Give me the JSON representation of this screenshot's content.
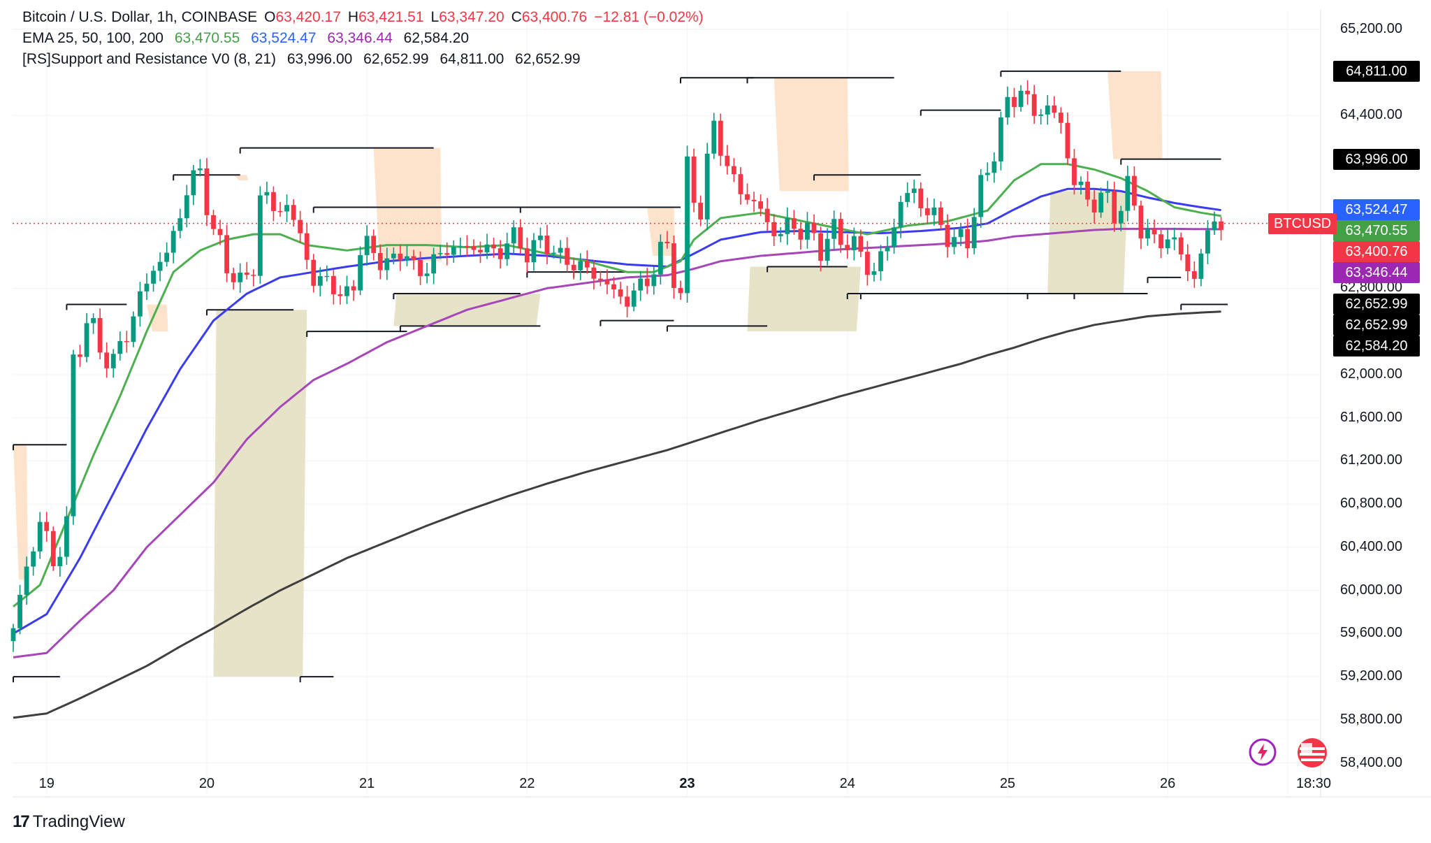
{
  "header": {
    "symbol_title": "Bitcoin / U.S. Dollar, 1h, COINBASE",
    "ohlc": [
      {
        "key": "O",
        "value": "63,420.17"
      },
      {
        "key": "H",
        "value": "63,421.51"
      },
      {
        "key": "L",
        "value": "63,347.20"
      },
      {
        "key": "C",
        "value": "63,400.76"
      }
    ],
    "change": "−12.81 (−0.02%)"
  },
  "indicators": {
    "ema_label": "EMA 25, 50, 100, 200",
    "ema_values": [
      "63,470.55",
      "63,524.47",
      "63,346.44",
      "62,584.20"
    ],
    "sr_label": "[RS]Support and Resistance V0 (8, 21)",
    "sr_values": [
      "63,996.00",
      "62,652.99",
      "64,811.00",
      "62,652.99"
    ]
  },
  "colors": {
    "up": "#089981",
    "down": "#f23645",
    "ema25": "#4caf50",
    "ema50": "#3b3bf0",
    "ema100": "#a646b8",
    "ema200": "#3f3f3f",
    "resistance_fill": "#fde3cc",
    "support_fill": "#e6e3c8",
    "level_line": "#131722"
  },
  "price_tags": [
    {
      "label": "64,811.00",
      "price": 64811,
      "bg": "#000000"
    },
    {
      "label": "63,996.00",
      "price": 63996,
      "bg": "#000000"
    },
    {
      "label": "63,524.47",
      "price": 63524.47,
      "bg": "#2962ff"
    },
    {
      "label": "63,470.55",
      "price": 63470.55,
      "bg": "#43a047"
    },
    {
      "label": "63,400.76",
      "price": 63400.76,
      "bg": "#f23645"
    },
    {
      "label": "63,346.44",
      "price": 63346.44,
      "bg": "#9c27b0"
    },
    {
      "label": "62,652.99",
      "price": 62652.99,
      "bg": "#000000"
    },
    {
      "label": "62,652.99",
      "price": 62652.99,
      "bg": "#000000"
    },
    {
      "label": "62,584.20",
      "price": 62584.2,
      "bg": "#000000"
    }
  ],
  "symbol_tag": "BTCUSD",
  "footer": {
    "brand": "TradingView",
    "brand_mark": "17"
  },
  "icons": {
    "left": "lightning-icon",
    "right": "us-flag-icon"
  },
  "chart_data": {
    "type": "candlestick",
    "title": "Bitcoin / U.S. Dollar, 1h, COINBASE",
    "ylim": [
      58100,
      65380
    ],
    "y_ticks": [
      58400,
      58800,
      59200,
      59600,
      60000,
      60400,
      60800,
      61200,
      61600,
      62000,
      62800,
      64400,
      65200
    ],
    "y_tick_labels": [
      "58,400.00",
      "58,800.00",
      "59,200.00",
      "59,600.00",
      "60,000.00",
      "60,400.00",
      "60,800.00",
      "61,200.00",
      "61,600.00",
      "62,000.00",
      "62,800.00",
      "64,400.00",
      "65,200.00"
    ],
    "x_ticks": [
      {
        "label": "19",
        "bar": 5,
        "bold": false
      },
      {
        "label": "20",
        "bar": 29,
        "bold": false
      },
      {
        "label": "21",
        "bar": 53,
        "bold": false
      },
      {
        "label": "22",
        "bar": 77,
        "bold": false
      },
      {
        "label": "23",
        "bar": 101,
        "bold": true
      },
      {
        "label": "24",
        "bar": 125,
        "bold": false
      },
      {
        "label": "25",
        "bar": 149,
        "bold": false
      },
      {
        "label": "26",
        "bar": 173,
        "bold": false
      },
      {
        "label": "18:30",
        "bar": 191,
        "bold": false
      }
    ],
    "close_anchors": [
      [
        0,
        59650
      ],
      [
        2,
        60200
      ],
      [
        4,
        60650
      ],
      [
        6,
        60250
      ],
      [
        8,
        60600
      ],
      [
        9,
        62100
      ],
      [
        11,
        62500
      ],
      [
        13,
        62250
      ],
      [
        15,
        62100
      ],
      [
        17,
        62400
      ],
      [
        19,
        62700
      ],
      [
        21,
        63000
      ],
      [
        23,
        63100
      ],
      [
        24,
        63300
      ],
      [
        26,
        63700
      ],
      [
        28,
        63900
      ],
      [
        30,
        63300
      ],
      [
        32,
        63050
      ],
      [
        34,
        62800
      ],
      [
        36,
        63050
      ],
      [
        37,
        63600
      ],
      [
        39,
        63600
      ],
      [
        41,
        63500
      ],
      [
        43,
        63350
      ],
      [
        45,
        62800
      ],
      [
        47,
        62950
      ],
      [
        49,
        62650
      ],
      [
        51,
        62900
      ],
      [
        52,
        63100
      ],
      [
        54,
        63200
      ],
      [
        56,
        62950
      ],
      [
        58,
        63200
      ],
      [
        60,
        62950
      ],
      [
        62,
        63000
      ],
      [
        64,
        63100
      ],
      [
        66,
        63200
      ],
      [
        68,
        63150
      ],
      [
        70,
        63200
      ],
      [
        72,
        63100
      ],
      [
        74,
        63250
      ],
      [
        76,
        63200
      ],
      [
        78,
        63150
      ],
      [
        80,
        63250
      ],
      [
        82,
        63050
      ],
      [
        84,
        63050
      ],
      [
        86,
        62950
      ],
      [
        88,
        62900
      ],
      [
        90,
        62750
      ],
      [
        92,
        62700
      ],
      [
        94,
        62800
      ],
      [
        96,
        63000
      ],
      [
        98,
        63200
      ],
      [
        100,
        62700
      ],
      [
        101,
        63900
      ],
      [
        103,
        63500
      ],
      [
        105,
        64350
      ],
      [
        107,
        63900
      ],
      [
        109,
        63700
      ],
      [
        111,
        63600
      ],
      [
        113,
        63400
      ],
      [
        115,
        63300
      ],
      [
        117,
        63400
      ],
      [
        119,
        63300
      ],
      [
        121,
        63200
      ],
      [
        123,
        63300
      ],
      [
        125,
        63250
      ],
      [
        127,
        63100
      ],
      [
        129,
        62950
      ],
      [
        131,
        63200
      ],
      [
        133,
        63600
      ],
      [
        135,
        63700
      ],
      [
        137,
        63500
      ],
      [
        139,
        63400
      ],
      [
        141,
        63200
      ],
      [
        143,
        63300
      ],
      [
        145,
        63700
      ],
      [
        147,
        64100
      ],
      [
        149,
        64500
      ],
      [
        151,
        64650
      ],
      [
        153,
        64400
      ],
      [
        155,
        64500
      ],
      [
        157,
        64300
      ],
      [
        159,
        63800
      ],
      [
        161,
        63600
      ],
      [
        163,
        63650
      ],
      [
        165,
        63500
      ],
      [
        167,
        63700
      ],
      [
        169,
        63400
      ],
      [
        171,
        63200
      ],
      [
        173,
        63300
      ],
      [
        175,
        63100
      ],
      [
        177,
        62900
      ],
      [
        179,
        63300
      ],
      [
        180,
        63450
      ],
      [
        181,
        63400
      ]
    ],
    "ema25_anchors": [
      [
        0,
        59850
      ],
      [
        4,
        60050
      ],
      [
        8,
        60650
      ],
      [
        12,
        61250
      ],
      [
        16,
        61800
      ],
      [
        20,
        62400
      ],
      [
        24,
        62950
      ],
      [
        28,
        63150
      ],
      [
        32,
        63250
      ],
      [
        36,
        63300
      ],
      [
        40,
        63300
      ],
      [
        44,
        63200
      ],
      [
        50,
        63150
      ],
      [
        56,
        63200
      ],
      [
        62,
        63200
      ],
      [
        68,
        63180
      ],
      [
        74,
        63200
      ],
      [
        80,
        63120
      ],
      [
        86,
        63050
      ],
      [
        92,
        62950
      ],
      [
        96,
        62950
      ],
      [
        100,
        63050
      ],
      [
        102,
        63250
      ],
      [
        106,
        63450
      ],
      [
        112,
        63500
      ],
      [
        120,
        63400
      ],
      [
        128,
        63300
      ],
      [
        134,
        63380
      ],
      [
        140,
        63420
      ],
      [
        146,
        63520
      ],
      [
        150,
        63800
      ],
      [
        154,
        63950
      ],
      [
        158,
        63950
      ],
      [
        162,
        63900
      ],
      [
        166,
        63820
      ],
      [
        170,
        63700
      ],
      [
        174,
        63550
      ],
      [
        178,
        63500
      ],
      [
        181,
        63470
      ]
    ],
    "ema50_anchors": [
      [
        0,
        59600
      ],
      [
        5,
        59780
      ],
      [
        10,
        60300
      ],
      [
        15,
        60900
      ],
      [
        20,
        61500
      ],
      [
        25,
        62050
      ],
      [
        30,
        62500
      ],
      [
        35,
        62750
      ],
      [
        40,
        62900
      ],
      [
        45,
        62950
      ],
      [
        50,
        63000
      ],
      [
        56,
        63050
      ],
      [
        62,
        63080
      ],
      [
        68,
        63100
      ],
      [
        74,
        63120
      ],
      [
        80,
        63100
      ],
      [
        86,
        63060
      ],
      [
        92,
        63020
      ],
      [
        98,
        63000
      ],
      [
        102,
        63120
      ],
      [
        106,
        63250
      ],
      [
        112,
        63320
      ],
      [
        118,
        63330
      ],
      [
        124,
        63320
      ],
      [
        130,
        63310
      ],
      [
        136,
        63330
      ],
      [
        142,
        63360
      ],
      [
        146,
        63400
      ],
      [
        150,
        63530
      ],
      [
        154,
        63650
      ],
      [
        158,
        63720
      ],
      [
        162,
        63720
      ],
      [
        166,
        63700
      ],
      [
        170,
        63640
      ],
      [
        174,
        63590
      ],
      [
        178,
        63550
      ],
      [
        181,
        63524
      ]
    ],
    "ema100_anchors": [
      [
        0,
        59380
      ],
      [
        5,
        59420
      ],
      [
        10,
        59720
      ],
      [
        15,
        60000
      ],
      [
        20,
        60400
      ],
      [
        25,
        60700
      ],
      [
        30,
        61000
      ],
      [
        35,
        61400
      ],
      [
        40,
        61700
      ],
      [
        45,
        61950
      ],
      [
        50,
        62100
      ],
      [
        56,
        62300
      ],
      [
        62,
        62450
      ],
      [
        68,
        62600
      ],
      [
        74,
        62700
      ],
      [
        80,
        62800
      ],
      [
        86,
        62850
      ],
      [
        92,
        62900
      ],
      [
        98,
        62920
      ],
      [
        102,
        62980
      ],
      [
        106,
        63050
      ],
      [
        112,
        63100
      ],
      [
        118,
        63130
      ],
      [
        124,
        63160
      ],
      [
        130,
        63180
      ],
      [
        136,
        63200
      ],
      [
        142,
        63220
      ],
      [
        146,
        63240
      ],
      [
        150,
        63280
      ],
      [
        154,
        63300
      ],
      [
        158,
        63320
      ],
      [
        162,
        63340
      ],
      [
        166,
        63350
      ],
      [
        170,
        63350
      ],
      [
        174,
        63350
      ],
      [
        178,
        63348
      ],
      [
        181,
        63346
      ]
    ],
    "ema200_anchors": [
      [
        0,
        58820
      ],
      [
        5,
        58860
      ],
      [
        10,
        59000
      ],
      [
        15,
        59150
      ],
      [
        20,
        59300
      ],
      [
        25,
        59480
      ],
      [
        30,
        59650
      ],
      [
        35,
        59830
      ],
      [
        40,
        60000
      ],
      [
        45,
        60150
      ],
      [
        50,
        60300
      ],
      [
        56,
        60450
      ],
      [
        62,
        60600
      ],
      [
        68,
        60740
      ],
      [
        74,
        60870
      ],
      [
        80,
        60990
      ],
      [
        86,
        61100
      ],
      [
        92,
        61200
      ],
      [
        98,
        61300
      ],
      [
        102,
        61380
      ],
      [
        106,
        61460
      ],
      [
        112,
        61580
      ],
      [
        118,
        61690
      ],
      [
        124,
        61800
      ],
      [
        130,
        61900
      ],
      [
        136,
        62000
      ],
      [
        142,
        62100
      ],
      [
        146,
        62180
      ],
      [
        150,
        62250
      ],
      [
        154,
        62330
      ],
      [
        158,
        62400
      ],
      [
        162,
        62460
      ],
      [
        166,
        62500
      ],
      [
        170,
        62540
      ],
      [
        174,
        62560
      ],
      [
        178,
        62575
      ],
      [
        181,
        62584
      ]
    ],
    "resistance_levels": [
      [
        0,
        8,
        61350
      ],
      [
        8,
        17,
        62650
      ],
      [
        24,
        34,
        63850
      ],
      [
        34,
        63,
        64100
      ],
      [
        45,
        76,
        63550
      ],
      [
        76,
        100,
        63550
      ],
      [
        100,
        111,
        64750
      ],
      [
        110,
        132,
        64750
      ],
      [
        120,
        136,
        63850
      ],
      [
        136,
        148,
        64450
      ],
      [
        148,
        166,
        64811
      ],
      [
        166,
        181,
        63996
      ]
    ],
    "support_levels": [
      [
        0,
        7,
        59200
      ],
      [
        29,
        42,
        62600
      ],
      [
        43,
        48,
        59200
      ],
      [
        44,
        59,
        62400
      ],
      [
        57,
        76,
        62750
      ],
      [
        58,
        79,
        62450
      ],
      [
        77,
        86,
        62950
      ],
      [
        84,
        96,
        62950
      ],
      [
        88,
        99,
        62500
      ],
      [
        98,
        113,
        62450
      ],
      [
        113,
        125,
        63000
      ],
      [
        125,
        127,
        62750
      ],
      [
        127,
        152,
        62750
      ],
      [
        152,
        160,
        62750
      ],
      [
        159,
        170,
        62750
      ],
      [
        170,
        175,
        62900
      ],
      [
        175,
        182,
        62650
      ]
    ],
    "resistance_zones": [
      [
        0,
        2,
        61350,
        60100
      ],
      [
        20,
        23,
        62650,
        62400
      ],
      [
        33,
        35,
        63850,
        63800
      ],
      [
        54,
        64,
        64100,
        63050
      ],
      [
        95,
        99,
        63550,
        63100
      ],
      [
        114,
        125,
        64750,
        63700
      ],
      [
        164,
        172,
        64811,
        63996
      ]
    ],
    "support_zones": [
      [
        30,
        44,
        62600,
        59200
      ],
      [
        57,
        79,
        62750,
        62450
      ],
      [
        110,
        127,
        63000,
        62400
      ],
      [
        155,
        167,
        63700,
        62750
      ]
    ]
  }
}
